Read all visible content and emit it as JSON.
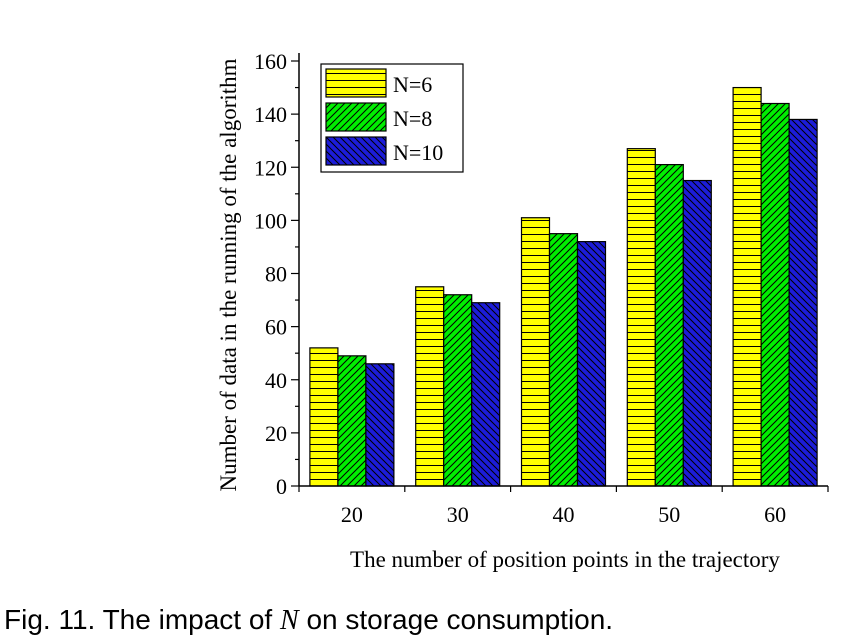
{
  "caption": {
    "prefix": "Fig. 11. The impact of ",
    "variable": "N",
    "suffix": " on storage consumption."
  },
  "colors": {
    "N=6": "#ffff00",
    "N=8": "#00ee00",
    "N=10": "#1c1cd8"
  },
  "chart_data": {
    "type": "bar",
    "title": "",
    "xlabel": "The number of position points in the trajectory",
    "ylabel": "Number of data in the running of the algorithm",
    "categories": [
      "20",
      "30",
      "40",
      "50",
      "60"
    ],
    "series": [
      {
        "name": "N=6",
        "values": [
          52,
          75,
          101,
          127,
          150
        ],
        "pattern": "horizontal-lines"
      },
      {
        "name": "N=8",
        "values": [
          49,
          72,
          95,
          121,
          144
        ],
        "pattern": "diagonal-lines"
      },
      {
        "name": "N=10",
        "values": [
          46,
          69,
          92,
          115,
          138
        ],
        "pattern": "back-diagonal-lines"
      }
    ],
    "ylim": [
      0,
      160
    ],
    "yticks": [
      "0",
      "20",
      "40",
      "60",
      "80",
      "100",
      "120",
      "140",
      "160"
    ],
    "grid": false,
    "legend_position": "top-left"
  }
}
